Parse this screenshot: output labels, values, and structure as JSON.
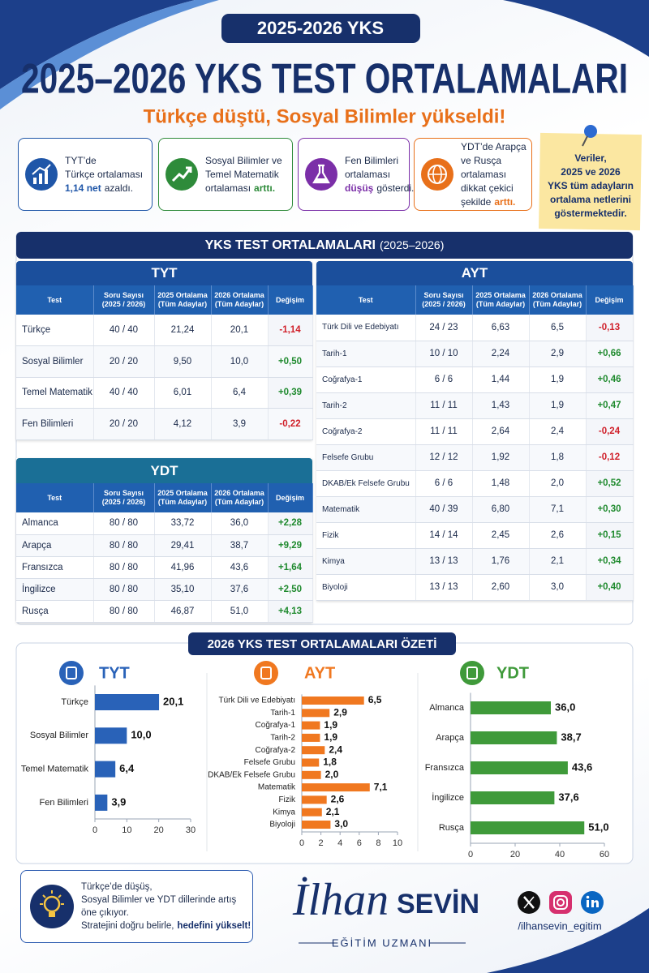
{
  "header": {
    "badge": "2025-2026 YKS",
    "title": "2025–2026 YKS TEST ORTALAMALARI",
    "subtitle": "Türkçe düştü, Sosyal Bilimler yükseldi!"
  },
  "cards": [
    {
      "lines": [
        "TYT’de",
        "Türkçe ortalaması"
      ],
      "last": [
        "1,14 net",
        "azaldı."
      ],
      "em": 0,
      "color": "#1f56a8"
    },
    {
      "lines": [
        "Sosyal Bilimler ve",
        "Temel Matematik"
      ],
      "last": [
        "ortalaması",
        "arttı."
      ],
      "em": 1,
      "color": "#2e8b3a"
    },
    {
      "lines": [
        "Fen Bilimleri",
        "ortalaması"
      ],
      "last": [
        "düşüş",
        "gösterdi."
      ],
      "em": 0,
      "color": "#7b2fa8"
    },
    {
      "lines": [
        "YDT’de Arapça",
        "ve Rusça ortalaması"
      ],
      "last": [
        "dikkat çekici şekilde",
        "arttı."
      ],
      "em": 1,
      "color": "#e8701a"
    }
  ],
  "note": [
    "Veriler,",
    "2025 ve 2026",
    "YKS tüm adayların",
    "ortalama netlerini",
    "göstermektedir."
  ],
  "section": {
    "title": "YKS TEST ORTALAMALARI",
    "years": "(2025–2026)"
  },
  "tables": {
    "columns": [
      "Test",
      "Soru Sayısı\n(2025 / 2026)",
      "2025 Ortalama\n(Tüm Adaylar)",
      "2026 Ortalama\n(Tüm Adaylar)",
      "Değişim"
    ],
    "tyt": {
      "title": "TYT",
      "rows": [
        [
          "Türkçe",
          "40 / 40",
          "21,24",
          "20,1",
          "-1,14"
        ],
        [
          "Sosyal Bilimler",
          "20 / 20",
          "9,50",
          "10,0",
          "+0,50"
        ],
        [
          "Temel Matematik",
          "40 / 40",
          "6,01",
          "6,4",
          "+0,39"
        ],
        [
          "Fen Bilimleri",
          "20 / 20",
          "4,12",
          "3,9",
          "-0,22"
        ]
      ]
    },
    "ayt": {
      "title": "AYT",
      "rows": [
        [
          "Türk Dili ve Edebiyatı",
          "24 / 23",
          "6,63",
          "6,5",
          "-0,13"
        ],
        [
          "Tarih-1",
          "10 / 10",
          "2,24",
          "2,9",
          "+0,66"
        ],
        [
          "Coğrafya-1",
          "6 / 6",
          "1,44",
          "1,9",
          "+0,46"
        ],
        [
          "Tarih-2",
          "11 / 11",
          "1,43",
          "1,9",
          "+0,47"
        ],
        [
          "Coğrafya-2",
          "11 / 11",
          "2,64",
          "2,4",
          "-0,24"
        ],
        [
          "Felsefe Grubu",
          "12 / 12",
          "1,92",
          "1,8",
          "-0,12"
        ],
        [
          "DKAB/Ek Felsefe Grubu",
          "6 / 6",
          "1,48",
          "2,0",
          "+0,52"
        ],
        [
          "Matematik",
          "40 / 39",
          "6,80",
          "7,1",
          "+0,30"
        ],
        [
          "Fizik",
          "14 / 14",
          "2,45",
          "2,6",
          "+0,15"
        ],
        [
          "Kimya",
          "13 / 13",
          "1,76",
          "2,1",
          "+0,34"
        ],
        [
          "Biyoloji",
          "13 / 13",
          "2,60",
          "3,0",
          "+0,40"
        ]
      ]
    },
    "ydt": {
      "title": "YDT",
      "rows": [
        [
          "Almanca",
          "80 / 80",
          "33,72",
          "36,0",
          "+2,28"
        ],
        [
          "Arapça",
          "80 / 80",
          "29,41",
          "38,7",
          "+9,29"
        ],
        [
          "Fransızca",
          "80 / 80",
          "41,96",
          "43,6",
          "+1,64"
        ],
        [
          "İngilizce",
          "80 / 80",
          "35,10",
          "37,6",
          "+2,50"
        ],
        [
          "Rusça",
          "80 / 80",
          "46,87",
          "51,0",
          "+4,13"
        ]
      ]
    }
  },
  "summary_title": "2026 YKS TEST ORTALAMALARI ÖZETİ",
  "chart_data": [
    {
      "type": "bar",
      "orientation": "horizontal",
      "title": "TYT",
      "color": "#2962b8",
      "categories": [
        "Türkçe",
        "Sosyal Bilimler",
        "Temel Matematik",
        "Fen Bilimleri"
      ],
      "values": [
        20.1,
        10.0,
        6.4,
        3.9
      ],
      "value_labels": [
        "20,1",
        "10,0",
        "6,4",
        "3,9"
      ],
      "xlim": [
        0,
        30
      ],
      "xticks": [
        0,
        10,
        20,
        30
      ]
    },
    {
      "type": "bar",
      "orientation": "horizontal",
      "title": "AYT",
      "color": "#f07820",
      "categories": [
        "Türk Dili ve Edebiyatı",
        "Tarih-1",
        "Coğrafya-1",
        "Tarih-2",
        "Coğrafya-2",
        "Felsefe Grubu",
        "DKAB/Ek Felsefe Grubu",
        "Matematik",
        "Fizik",
        "Kimya",
        "Biyoloji"
      ],
      "values": [
        6.5,
        2.9,
        1.9,
        1.9,
        2.4,
        1.8,
        2.0,
        7.1,
        2.6,
        2.1,
        3.0
      ],
      "value_labels": [
        "6,5",
        "2,9",
        "1,9",
        "1,9",
        "2,4",
        "1,8",
        "2,0",
        "7,1",
        "2,6",
        "2,1",
        "3,0"
      ],
      "xlim": [
        0,
        10
      ],
      "xticks": [
        0,
        2,
        4,
        6,
        8,
        10
      ]
    },
    {
      "type": "bar",
      "orientation": "horizontal",
      "title": "YDT",
      "color": "#3f9a3a",
      "categories": [
        "Almanca",
        "Arapça",
        "Fransızca",
        "İngilizce",
        "Rusça"
      ],
      "values": [
        36.0,
        38.7,
        43.6,
        37.6,
        51.0
      ],
      "value_labels": [
        "36,0",
        "38,7",
        "43,6",
        "37,6",
        "51,0"
      ],
      "xlim": [
        0,
        60
      ],
      "xticks": [
        0,
        20,
        40,
        60
      ]
    }
  ],
  "tip": {
    "lines": [
      "Türkçe’de düşüş,",
      "Sosyal Bilimler ve YDT dillerinde artış",
      "öne çıkıyor."
    ],
    "last": [
      "Stratejini doğru belirle,",
      "hedefini yükselt!"
    ],
    "em": 1
  },
  "footer": {
    "first_name": "İlhan",
    "last_name": "SEVİN",
    "role": "EĞİTİM UZMANI",
    "handle": "/ilhansevin_egitim"
  }
}
